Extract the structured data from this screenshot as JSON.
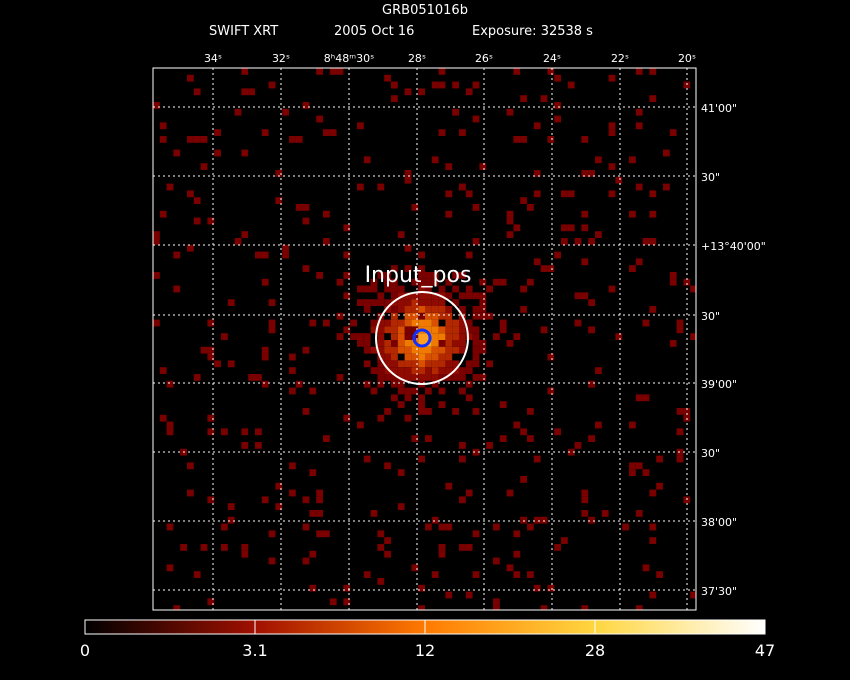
{
  "header": {
    "title": "GRB051016b",
    "instrument": "SWIFT XRT",
    "date": "2005 Oct 16",
    "exposure": "Exposure: 32538 s"
  },
  "image": {
    "annotation": "Input_pos",
    "ra_labels": [
      "34ˢ",
      "32ˢ",
      "8ʰ48ᵐ30ˢ",
      "28ˢ",
      "26ˢ",
      "24ˢ",
      "22ˢ",
      "20ˢ"
    ],
    "dec_labels": [
      "41'00\"",
      "30\"",
      "+13°40'00\"",
      "30\"",
      "39'00\"",
      "30\"",
      "38'00\"",
      "37'30\""
    ]
  },
  "colorbar": {
    "ticks": [
      0,
      3.1,
      12,
      28,
      47
    ]
  }
}
